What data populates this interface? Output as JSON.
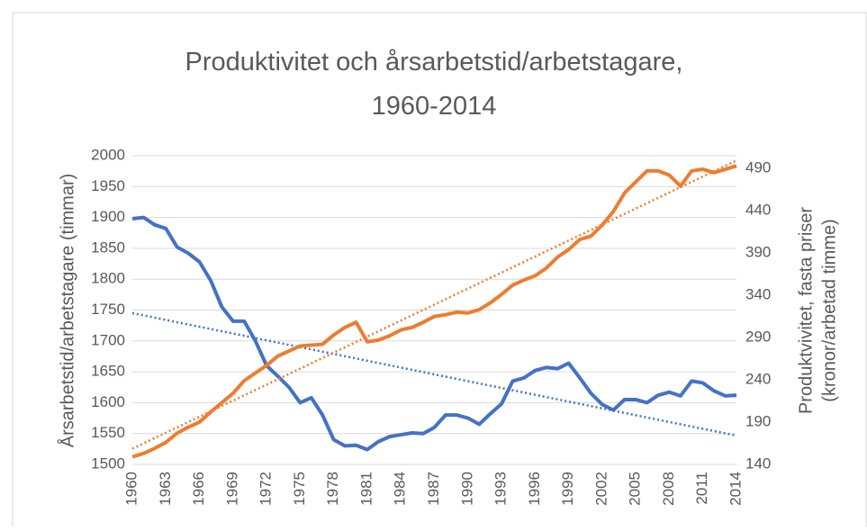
{
  "chart_data": {
    "type": "line",
    "title": [
      "Produktivitet och årsarbetstid/arbetstagare,",
      "1960-2014"
    ],
    "ylabel": "Årsarbetstid/arbetstagare (timmar)",
    "y2label": [
      "Produktvivitet, fasta priser",
      "(kronor/arbetad timme)"
    ],
    "x": [
      1960,
      1961,
      1962,
      1963,
      1964,
      1965,
      1966,
      1967,
      1968,
      1969,
      1970,
      1971,
      1972,
      1973,
      1974,
      1975,
      1976,
      1977,
      1978,
      1979,
      1980,
      1981,
      1982,
      1983,
      1984,
      1985,
      1986,
      1987,
      1988,
      1989,
      1990,
      1991,
      1992,
      1993,
      1994,
      1995,
      1996,
      1997,
      1998,
      1999,
      2000,
      2001,
      2002,
      2003,
      2004,
      2005,
      2006,
      2007,
      2008,
      2009,
      2010,
      2011,
      2012,
      2013,
      2014
    ],
    "xlim": [
      1960,
      2014
    ],
    "xticks": [
      1960,
      1963,
      1966,
      1969,
      1972,
      1975,
      1978,
      1981,
      1984,
      1987,
      1990,
      1993,
      1996,
      1999,
      2002,
      2005,
      2008,
      2011,
      2014
    ],
    "ylim": [
      1500,
      2000
    ],
    "yticks": [
      1500,
      1550,
      1600,
      1650,
      1700,
      1750,
      1800,
      1850,
      1900,
      1950,
      2000
    ],
    "y2lim": [
      140,
      505
    ],
    "y2ticks": [
      140,
      190,
      240,
      290,
      340,
      390,
      440,
      490
    ],
    "grid": true,
    "trendline": true,
    "series": [
      {
        "color": "#4472c4",
        "values": [
          1898,
          1900,
          1888,
          1882,
          1852,
          1842,
          1828,
          1798,
          1755,
          1732,
          1732,
          1700,
          1660,
          1643,
          1625,
          1600,
          1608,
          1580,
          1540,
          1530,
          1531,
          1524,
          1537,
          1545,
          1548,
          1551,
          1550,
          1560,
          1580,
          1580,
          1575,
          1565,
          1582,
          1598,
          1635,
          1640,
          1652,
          1657,
          1655,
          1664,
          1640,
          1615,
          1597,
          1588,
          1605,
          1605,
          1600,
          1612,
          1617,
          1611,
          1635,
          1632,
          1619,
          1611,
          1612
        ]
      },
      {
        "color": "#ed7d31",
        "axis": "y2",
        "values": [
          149,
          153,
          159,
          166,
          177,
          184,
          190,
          202,
          213,
          224,
          239,
          248,
          257,
          268,
          274,
          280,
          281,
          282,
          293,
          302,
          308,
          285,
          287,
          292,
          299,
          302,
          308,
          315,
          317,
          320,
          319,
          323,
          331,
          341,
          352,
          358,
          363,
          372,
          385,
          394,
          406,
          410,
          423,
          439,
          461,
          474,
          487,
          487,
          482,
          469,
          487,
          489,
          485,
          489,
          493
        ]
      }
    ]
  }
}
